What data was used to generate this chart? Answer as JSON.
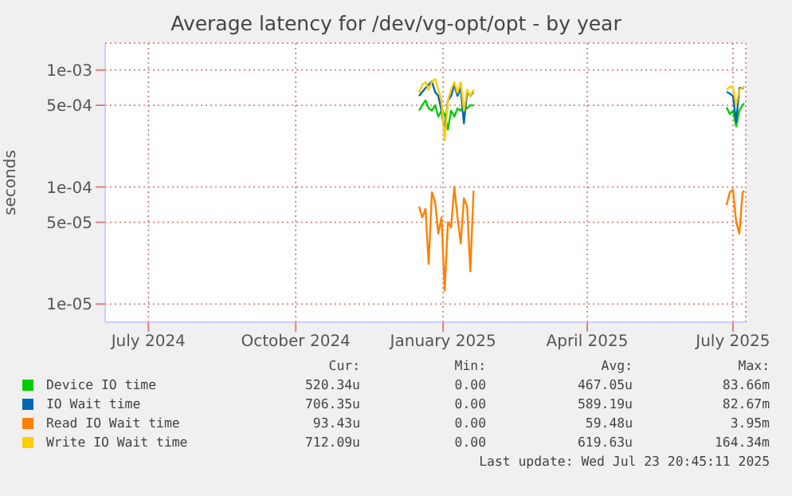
{
  "chart_data": {
    "type": "line",
    "title": "Average latency for /dev/vg-opt/opt - by year",
    "ylabel": "seconds",
    "log": "y",
    "grid": true,
    "legend": "bottom left",
    "marker": "none",
    "line_style": "solid",
    "xlim": [
      "2024-06-19",
      "2025-07-24"
    ],
    "xticks": [
      {
        "value": "2024-07-16",
        "label": "July 2024"
      },
      {
        "value": "2024-10-16",
        "label": "October 2024"
      },
      {
        "value": "2025-01-16",
        "label": "January 2025"
      },
      {
        "value": "2025-04-16",
        "label": "April 2025"
      },
      {
        "value": "2025-07-16",
        "label": "July 2025"
      }
    ],
    "ylim": [
      7e-06,
      0.0017
    ],
    "yticks": [
      {
        "value": 1e-05,
        "label": "1e-05"
      },
      {
        "value": 5e-05,
        "label": "5e-05"
      },
      {
        "value": 0.0001,
        "label": "1e-04"
      },
      {
        "value": 0.0005,
        "label": "5e-04"
      },
      {
        "value": 0.001,
        "label": "1e-03"
      }
    ],
    "x": [
      "2025-01-01",
      "2025-01-03",
      "2025-01-05",
      "2025-01-07",
      "2025-01-09",
      "2025-01-11",
      "2025-01-13",
      "2025-01-15",
      "2025-01-17",
      "2025-01-19",
      "2025-01-21",
      "2025-01-23",
      "2025-01-25",
      "2025-01-27",
      "2025-01-29",
      "2025-01-31",
      "2025-02-02",
      "2025-02-04",
      "2025-04-01",
      "2025-07-12",
      "2025-07-14",
      "2025-07-16",
      "2025-07-18",
      "2025-07-20",
      "2025-07-22",
      "2025-07-23"
    ],
    "series": [
      {
        "name": "Device IO time",
        "color": "#00cc00",
        "values": [
          0.00045,
          0.0005,
          0.00055,
          0.00047,
          0.00045,
          0.0005,
          0.0004,
          0.00045,
          0.00042,
          0.00031,
          0.00045,
          0.0004,
          0.00047,
          0.00045,
          0.0005,
          0.00047,
          0.0005,
          0.0005,
          null,
          0.00048,
          0.00042,
          0.00045,
          0.00033,
          0.00045,
          0.0005,
          0.00052
        ]
      },
      {
        "name": "IO Wait time",
        "color": "#0066b3",
        "values": [
          0.0006,
          0.00065,
          0.0007,
          0.00075,
          0.0008,
          0.00065,
          0.0006,
          0.00045,
          0.0003,
          0.00055,
          0.0006,
          0.00075,
          0.0006,
          0.0007,
          0.00035,
          0.00065,
          0.0006,
          0.00065,
          null,
          0.00065,
          0.00063,
          0.0006,
          0.00036,
          0.0007,
          0.0007,
          0.00071
        ]
      },
      {
        "name": "Read IO Wait time",
        "color": "#ff8000",
        "values": [
          6.8e-05,
          5.5e-05,
          6.5e-05,
          2.2e-05,
          9e-05,
          7.5e-05,
          4e-05,
          5.5e-05,
          1.3e-05,
          5e-05,
          4.5e-05,
          0.0001,
          5.5e-05,
          3.3e-05,
          8e-05,
          6.8e-05,
          1.9e-05,
          9.3e-05,
          null,
          7e-05,
          9e-05,
          9.5e-05,
          5e-05,
          4e-05,
          9e-05,
          9.3e-05
        ]
      },
      {
        "name": "Write IO Wait time",
        "color": "#ffcc00",
        "values": [
          0.00064,
          0.00075,
          0.00079,
          0.00068,
          0.00079,
          0.00084,
          0.00068,
          0.00055,
          0.00025,
          0.00055,
          0.00068,
          0.00079,
          0.00064,
          0.00079,
          0.00045,
          0.00068,
          0.0006,
          0.00068,
          null,
          0.00068,
          0.00072,
          0.00072,
          0.0005,
          0.00068,
          0.00071,
          0.00071
        ]
      }
    ],
    "annotations": [
      "Cur:",
      "Min:",
      "Avg:",
      "Max:",
      "520.34u",
      "0.00",
      "467.05u",
      "83.66m",
      "706.35u",
      "0.00",
      "589.19u",
      "82.67m",
      "93.43u",
      "0.00",
      "59.48u",
      "3.95m",
      "712.09u",
      "0.00",
      "619.63u",
      "164.34m",
      "Last update: Wed Jul 23 20:45:11 2025"
    ]
  }
}
